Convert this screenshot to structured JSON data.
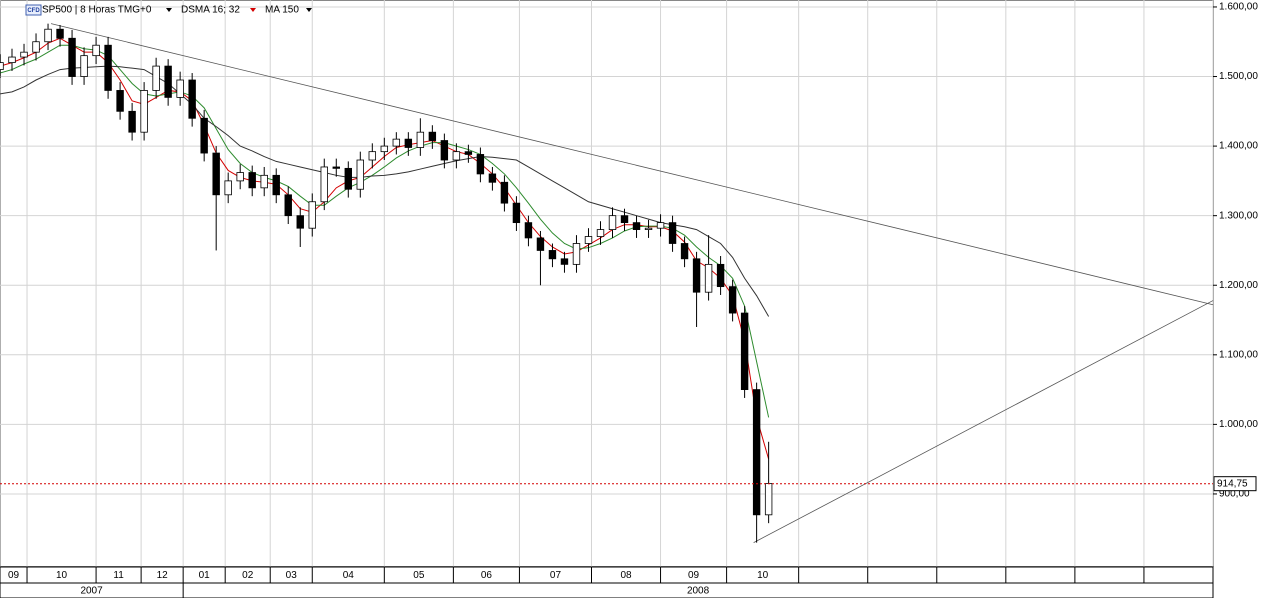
{
  "chart_data": {
    "type": "candlestick",
    "title": "SP500 | 8 Horas TMG+0",
    "logo": "CFD",
    "indicators": [
      {
        "label": "DSMA 16; 32",
        "color": "#d40000"
      },
      {
        "label": "MA 150",
        "color": "#000000"
      }
    ],
    "x": [
      0,
      4,
      8,
      12,
      16,
      20,
      24,
      28,
      32,
      36,
      40,
      44,
      48,
      52,
      56,
      60,
      64,
      68,
      72,
      76,
      80,
      84,
      88,
      92,
      96,
      100,
      104,
      108,
      112,
      116,
      120,
      124,
      128,
      132,
      136,
      140,
      144,
      148,
      152,
      156,
      160,
      164,
      168,
      172,
      176,
      180,
      184,
      188,
      192,
      196,
      200,
      204,
      208,
      212,
      216,
      220,
      224,
      228,
      232,
      236,
      240,
      244,
      248,
      252,
      256
    ],
    "open": [
      1510,
      1520,
      1528,
      1535,
      1550,
      1568,
      1555,
      1500,
      1530,
      1545,
      1480,
      1450,
      1420,
      1480,
      1515,
      1470,
      1495,
      1440,
      1390,
      1330,
      1350,
      1362,
      1340,
      1358,
      1330,
      1300,
      1282,
      1320,
      1370,
      1368,
      1338,
      1380,
      1392,
      1400,
      1410,
      1398,
      1420,
      1408,
      1380,
      1392,
      1388,
      1360,
      1348,
      1318,
      1290,
      1268,
      1250,
      1238,
      1230,
      1260,
      1270,
      1280,
      1300,
      1290,
      1280,
      1282,
      1290,
      1260,
      1238,
      1190,
      1230,
      1198,
      1160,
      1050,
      870
    ],
    "high": [
      1532,
      1540,
      1547,
      1562,
      1576,
      1574,
      1567,
      1542,
      1557,
      1557,
      1492,
      1462,
      1492,
      1527,
      1525,
      1507,
      1505,
      1452,
      1400,
      1362,
      1374,
      1372,
      1370,
      1368,
      1342,
      1312,
      1332,
      1382,
      1382,
      1378,
      1392,
      1404,
      1412,
      1420,
      1420,
      1440,
      1430,
      1418,
      1404,
      1402,
      1398,
      1370,
      1358,
      1328,
      1300,
      1278,
      1260,
      1248,
      1272,
      1282,
      1292,
      1312,
      1310,
      1300,
      1294,
      1302,
      1300,
      1270,
      1248,
      1272,
      1242,
      1208,
      1170,
      1060,
      975
    ],
    "low": [
      1498,
      1508,
      1516,
      1523,
      1538,
      1543,
      1488,
      1488,
      1518,
      1468,
      1438,
      1408,
      1408,
      1468,
      1458,
      1458,
      1428,
      1378,
      1250,
      1318,
      1338,
      1328,
      1328,
      1318,
      1288,
      1255,
      1270,
      1308,
      1356,
      1326,
      1326,
      1368,
      1380,
      1388,
      1386,
      1386,
      1396,
      1368,
      1368,
      1376,
      1348,
      1336,
      1306,
      1278,
      1256,
      1200,
      1226,
      1218,
      1218,
      1248,
      1258,
      1268,
      1278,
      1268,
      1268,
      1270,
      1248,
      1226,
      1140,
      1178,
      1186,
      1148,
      1038,
      830,
      858
    ],
    "close": [
      1520,
      1528,
      1535,
      1550,
      1568,
      1555,
      1500,
      1530,
      1545,
      1480,
      1450,
      1420,
      1480,
      1515,
      1470,
      1495,
      1440,
      1390,
      1330,
      1350,
      1362,
      1340,
      1358,
      1330,
      1300,
      1282,
      1320,
      1370,
      1368,
      1338,
      1380,
      1392,
      1400,
      1410,
      1398,
      1420,
      1408,
      1380,
      1392,
      1388,
      1360,
      1348,
      1318,
      1290,
      1268,
      1250,
      1238,
      1230,
      1260,
      1270,
      1280,
      1300,
      1290,
      1280,
      1282,
      1290,
      1260,
      1238,
      1190,
      1230,
      1198,
      1160,
      1050,
      870,
      915
    ],
    "up_color": "#ffffff",
    "down_color": "#000000",
    "series": [
      {
        "color": "#d40000",
        "values": [
          1515,
          1520,
          1527,
          1535,
          1548,
          1555,
          1545,
          1535,
          1535,
          1520,
          1495,
          1465,
          1460,
          1470,
          1480,
          1478,
          1465,
          1430,
          1390,
          1365,
          1355,
          1350,
          1348,
          1345,
          1330,
          1310,
          1305,
          1320,
          1340,
          1350,
          1355,
          1370,
          1385,
          1398,
          1402,
          1405,
          1408,
          1400,
          1392,
          1388,
          1375,
          1360,
          1340,
          1315,
          1290,
          1270,
          1255,
          1245,
          1248,
          1258,
          1268,
          1280,
          1287,
          1287,
          1284,
          1284,
          1278,
          1262,
          1235,
          1225,
          1210,
          1185,
          1120,
          1010,
          950
        ]
      },
      {
        "color": "#2e8b2e",
        "values": [
          1505,
          1510,
          1518,
          1525,
          1535,
          1545,
          1545,
          1540,
          1538,
          1530,
          1510,
          1490,
          1475,
          1472,
          1475,
          1478,
          1472,
          1455,
          1425,
          1395,
          1375,
          1362,
          1355,
          1350,
          1342,
          1328,
          1315,
          1315,
          1328,
          1340,
          1348,
          1358,
          1370,
          1383,
          1393,
          1400,
          1405,
          1405,
          1400,
          1395,
          1388,
          1375,
          1360,
          1340,
          1318,
          1295,
          1275,
          1260,
          1252,
          1254,
          1260,
          1268,
          1278,
          1284,
          1285,
          1285,
          1282,
          1272,
          1255,
          1240,
          1228,
          1210,
          1170,
          1090,
          1010
        ]
      },
      {
        "color": "#333333",
        "values": [
          1475,
          1478,
          1485,
          1495,
          1503,
          1510,
          1512,
          1513,
          1514,
          1515,
          1514,
          1512,
          1510,
          1500,
          1490,
          1475,
          1460,
          1440,
          1428,
          1415,
          1400,
          1393,
          1385,
          1378,
          1374,
          1370,
          1366,
          1362,
          1358,
          1355,
          1355,
          1357,
          1358,
          1360,
          1363,
          1367,
          1371,
          1375,
          1379,
          1382,
          1385,
          1384,
          1382,
          1380,
          1370,
          1360,
          1350,
          1340,
          1330,
          1320,
          1315,
          1310,
          1305,
          1300,
          1295,
          1290,
          1287,
          1284,
          1280,
          1270,
          1260,
          1240,
          1210,
          1185,
          1155
        ]
      }
    ],
    "trendlines": [
      {
        "x": [
          17,
          404
        ],
        "y": [
          1576,
          1172
        ]
      },
      {
        "x": [
          251,
          404
        ],
        "y": [
          830,
          1178
        ]
      }
    ],
    "last_price": 914.75,
    "last_price_label": "914,75",
    "last_price_color": "#d40000",
    "xlim": [
      0,
      404
    ],
    "xticks": [
      0,
      9,
      32,
      47,
      61,
      75,
      90,
      104,
      128,
      151,
      173,
      197,
      220,
      242,
      266,
      289,
      312,
      335,
      358,
      381,
      404
    ],
    "month_labels": [
      "09",
      "10",
      "11",
      "12",
      "01",
      "02",
      "03",
      "04",
      "05",
      "06",
      "07",
      "08",
      "09",
      "10"
    ],
    "years": [
      {
        "label": "2007",
        "start": 0,
        "end": 61
      },
      {
        "label": "2008",
        "start": 61,
        "end": 404
      }
    ],
    "ylim": [
      795,
      1610
    ],
    "yticks": [
      {
        "value": 900,
        "label": "900,00"
      },
      {
        "value": 1000,
        "label": "1.000,00"
      },
      {
        "value": 1100,
        "label": "1.100,00"
      },
      {
        "value": 1200,
        "label": "1.200,00"
      },
      {
        "value": 1300,
        "label": "1.300,00"
      },
      {
        "value": 1400,
        "label": "1.400,00"
      },
      {
        "value": 1500,
        "label": "1.500,00"
      },
      {
        "value": 1600,
        "label": "1.600,00"
      }
    ],
    "grid": true
  }
}
